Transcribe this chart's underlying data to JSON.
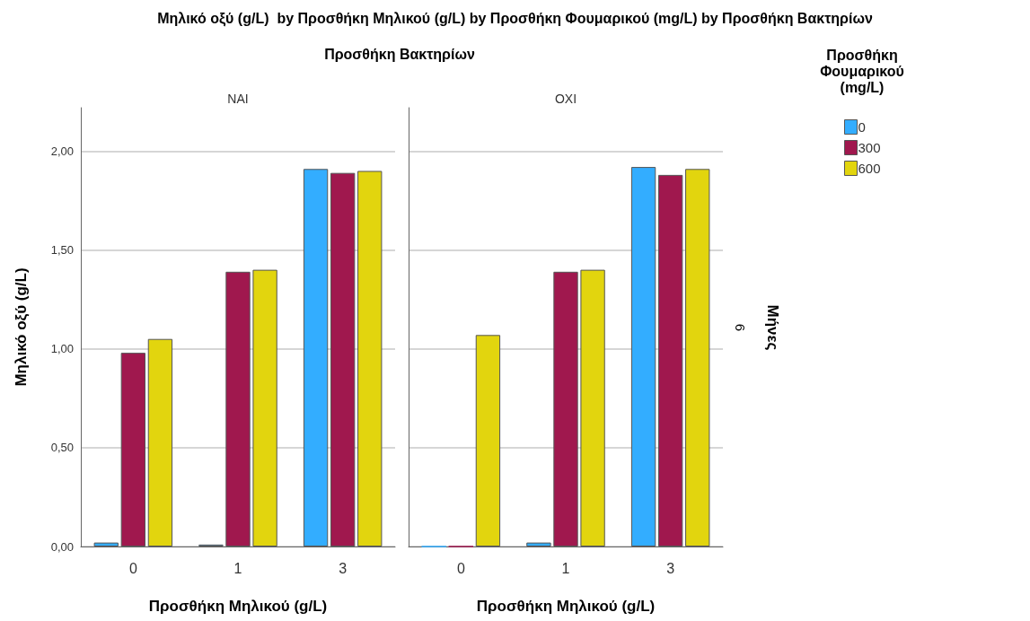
{
  "chart_data": [
    {
      "type": "bar",
      "title": "Μηλικό οξύ (g/L)  by Προσθήκη Μηλικού (g/L) by Προσθήκη Φουμαρικού (mg/L) by Προσθήκη Βακτηρίων",
      "subtitle": "NAI",
      "xlabel": "Προσθήκη Μηλικού (g/L)",
      "ylabel": "Μηλικό οξύ (g/L)",
      "legend_title": "Προσθήκη Φουμαρικού (mg/L)",
      "annotations": [
        "Προσθήκη Βακτηρίων",
        "Μήνες",
        "6"
      ],
      "categories": [
        "0",
        "1",
        "3"
      ],
      "series": [
        {
          "name": "0",
          "color": "#33adff",
          "values": [
            0.02,
            0.01,
            1.91
          ]
        },
        {
          "name": "300",
          "color": "#a0184e",
          "values": [
            0.98,
            1.39,
            1.89
          ]
        },
        {
          "name": "600",
          "color": "#e2d50e",
          "values": [
            1.05,
            1.4,
            1.9
          ]
        }
      ],
      "ylim": [
        0,
        2.22
      ],
      "yticks": [
        {
          "value": 0,
          "label": "0,00"
        },
        {
          "value": 0.5,
          "label": "0,50"
        },
        {
          "value": 1,
          "label": "1,00"
        },
        {
          "value": 1.5,
          "label": "1,50"
        },
        {
          "value": 2,
          "label": "2,00"
        }
      ],
      "grid": "y",
      "legend": "top right"
    },
    {
      "type": "bar",
      "subtitle": "OXI",
      "xlabel": "Προσθήκη Μηλικού (g/L)",
      "categories": [
        "0",
        "1",
        "3"
      ],
      "series": [
        {
          "color": "#33adff",
          "values": [
            0,
            0.02,
            1.92
          ]
        },
        {
          "color": "#a0184e",
          "values": [
            0,
            1.39,
            1.88
          ]
        },
        {
          "color": "#e2d50e",
          "values": [
            1.07,
            1.4,
            1.91
          ]
        }
      ],
      "ylim": [
        0,
        2.22
      ],
      "yticks": [
        0,
        0.5,
        1,
        1.5,
        2
      ],
      "grid": "y",
      "tick_labels": "x"
    }
  ]
}
